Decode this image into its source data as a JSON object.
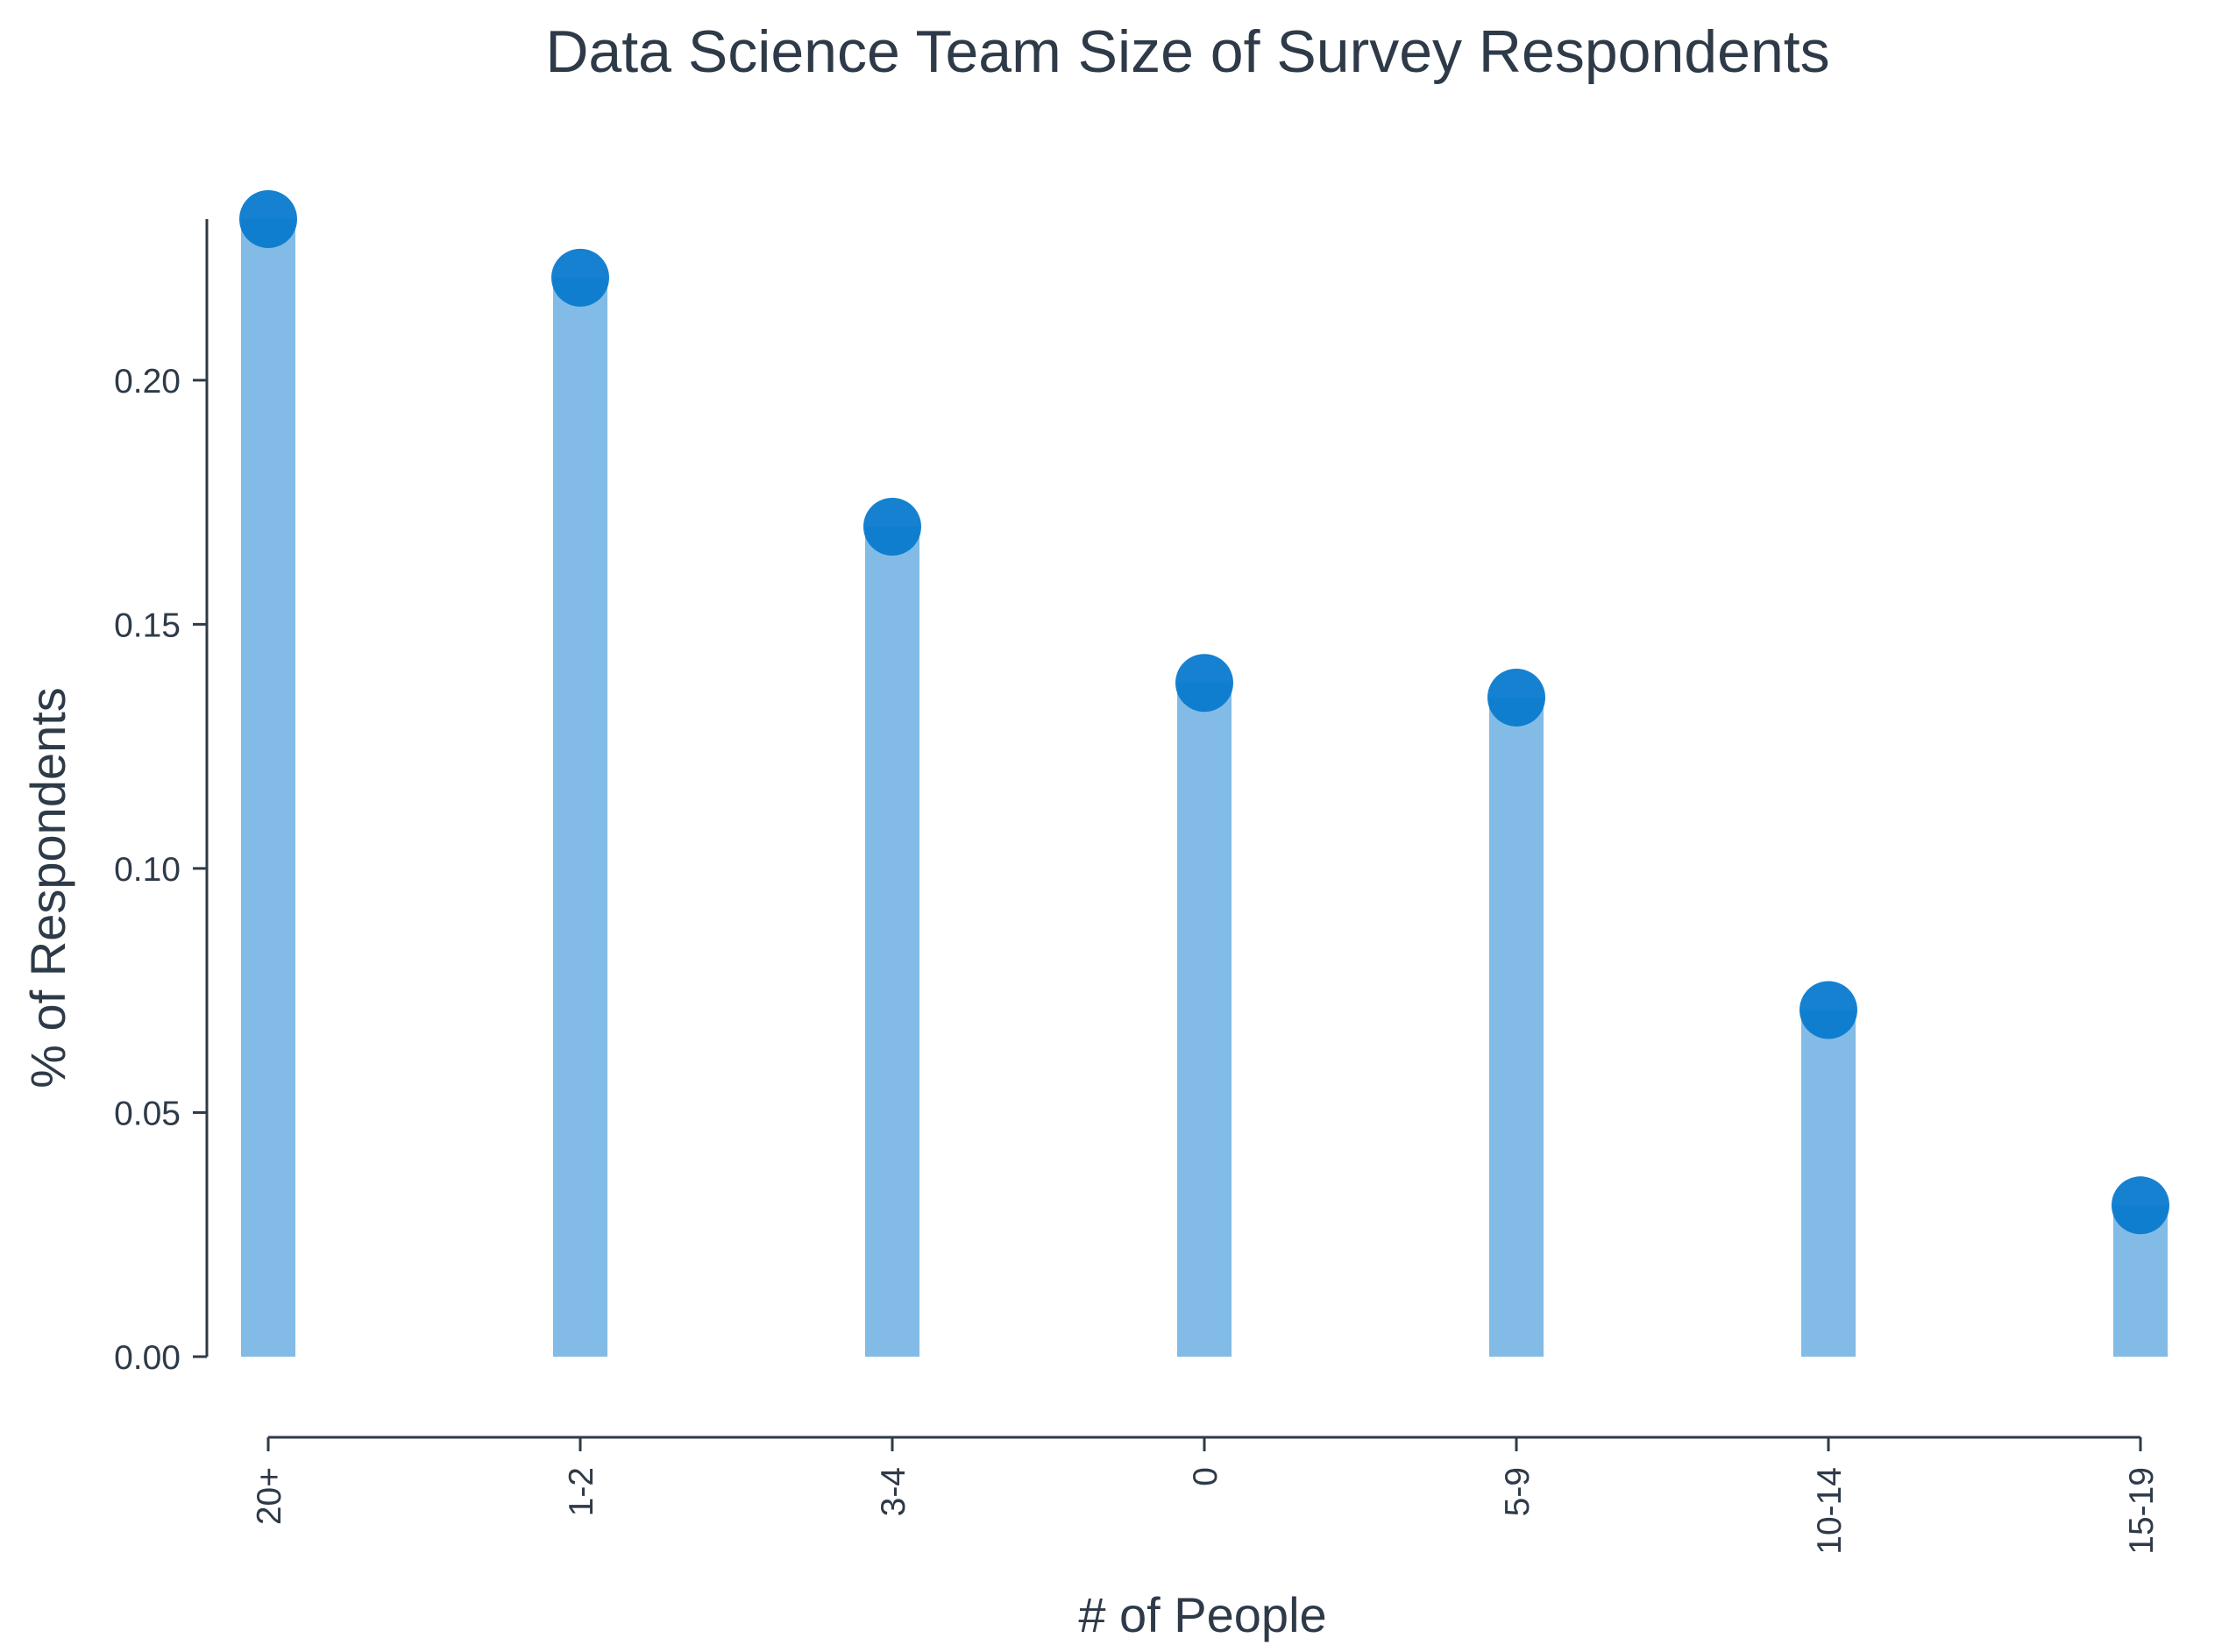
{
  "chart_data": {
    "type": "bar",
    "title": "Data Science Team Size of Survey Respondents",
    "xlabel": "# of People",
    "ylabel": "% of Respondents",
    "categories": [
      "20+",
      "1-2",
      "3-4",
      "0",
      "5-9",
      "10-14",
      "15-19"
    ],
    "values": [
      0.233,
      0.221,
      0.17,
      0.138,
      0.135,
      0.071,
      0.031
    ],
    "ylim": [
      0,
      0.233
    ],
    "yticks": [
      0.0,
      0.05,
      0.1,
      0.15,
      0.2
    ],
    "ytick_labels": [
      "0.00",
      "0.05",
      "0.10",
      "0.15",
      "0.20"
    ],
    "grid": false,
    "legend": "none",
    "colors": {
      "bar": "#82bbe5",
      "marker": "#0a7acd",
      "axis": "#2e3a48"
    }
  }
}
